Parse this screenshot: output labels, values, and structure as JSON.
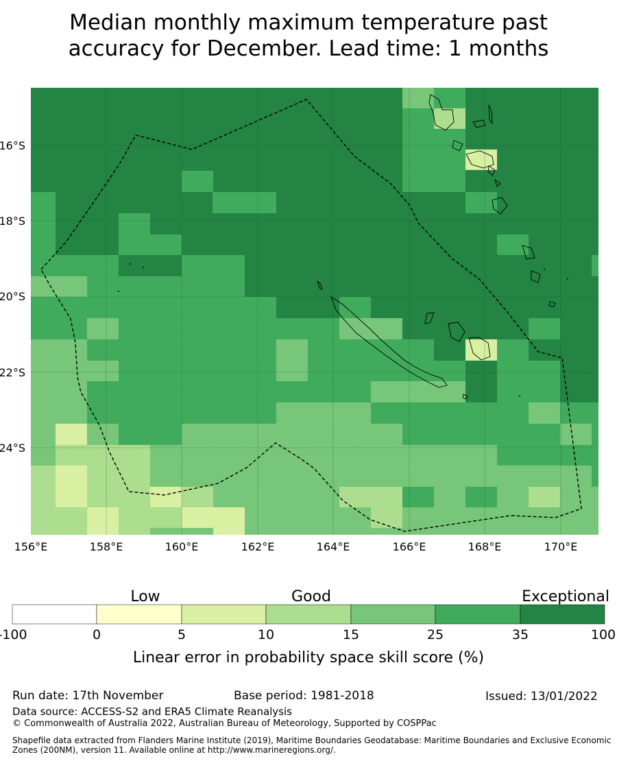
{
  "title_line1": "Median monthly maximum temperature past",
  "title_line2": "accuracy for December. Lead time: 1 months",
  "lat_labels": [
    "16°S",
    "18°S",
    "20°S",
    "22°S",
    "24°S"
  ],
  "lon_labels": [
    "156°E",
    "158°E",
    "160°E",
    "162°E",
    "164°E",
    "166°E",
    "168°E",
    "170°E"
  ],
  "legend": {
    "categories": [
      "Low",
      "Good",
      "Exceptional"
    ],
    "ticks": [
      "-100",
      "0",
      "5",
      "10",
      "15",
      "25",
      "35",
      "100"
    ],
    "colors": [
      "#ffffff",
      "#ffffcc",
      "#d9f0a3",
      "#addd8e",
      "#78c679",
      "#41ab5d",
      "#238443"
    ],
    "label": "Linear error in probability space skill score (%)"
  },
  "colors": {
    "c5": "#238443",
    "c4": "#41ab5d",
    "c3": "#78c679",
    "c2": "#addd8e",
    "c1": "#d9f0a3"
  },
  "run_date": "Run date: 17th November",
  "base_period": "Base period: 1981-2018",
  "issued": "Issued: 13/01/2022",
  "data_source": "Data source: ACCESS-S2 and ERA5 Climate Reanalysis",
  "copyright": "© Commonwealth of Australia 2022, Australian Bureau of Meteorology, Supported by COSPPac",
  "shapefile_note": "Shapefile data extracted from Flanders Marine Institute (2019), Maritime Boundaries Geodatabase: Maritime Boundaries and Exclusive Economic Zones (200NM), version 11. Available online at http://www.marineregions.org/."
}
